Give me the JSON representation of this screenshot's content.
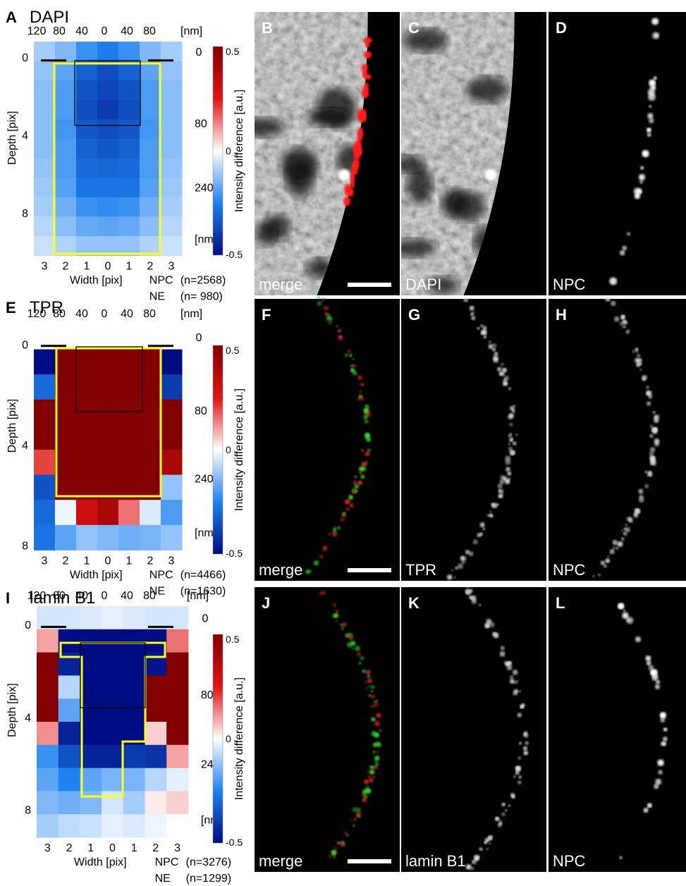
{
  "colorbar": {
    "title": "Intensity difference [a.u.]",
    "max_label": "0.5",
    "zero_label": "0",
    "min_label": "-0.5",
    "max": 0.5,
    "min": -0.5
  },
  "heatmaps": [
    {
      "label": "A",
      "title": "DAPI",
      "top_ticks": [
        "120",
        "80",
        "40",
        "0",
        "40",
        "80"
      ],
      "top_unit": "[nm]",
      "right_ticks": [
        "0",
        "80",
        "240",
        "[nm]"
      ],
      "y_ticks": [
        "0",
        "4",
        "8"
      ],
      "y_label": "Depth [pix]",
      "x_ticks": [
        "3",
        "2",
        "1",
        "0",
        "1",
        "2",
        "3"
      ],
      "x_label": "Width [pix]",
      "npc_label": "NPC",
      "npc_count": "(n=2568)",
      "ne_label": "NE",
      "ne_count": "(n=  980)",
      "values": [
        [
          -0.1,
          -0.14,
          -0.22,
          -0.26,
          -0.22,
          -0.14,
          -0.1
        ],
        [
          -0.12,
          -0.18,
          -0.32,
          -0.36,
          -0.32,
          -0.18,
          -0.12
        ],
        [
          -0.13,
          -0.2,
          -0.35,
          -0.38,
          -0.35,
          -0.2,
          -0.13
        ],
        [
          -0.13,
          -0.2,
          -0.36,
          -0.4,
          -0.36,
          -0.2,
          -0.13
        ],
        [
          -0.13,
          -0.21,
          -0.34,
          -0.36,
          -0.34,
          -0.21,
          -0.13
        ],
        [
          -0.13,
          -0.2,
          -0.32,
          -0.34,
          -0.32,
          -0.2,
          -0.13
        ],
        [
          -0.12,
          -0.2,
          -0.3,
          -0.31,
          -0.3,
          -0.2,
          -0.12
        ],
        [
          -0.11,
          -0.19,
          -0.28,
          -0.28,
          -0.28,
          -0.19,
          -0.11
        ],
        [
          -0.1,
          -0.16,
          -0.22,
          -0.23,
          -0.22,
          -0.16,
          -0.1
        ],
        [
          -0.08,
          -0.13,
          -0.17,
          -0.18,
          -0.17,
          -0.13,
          -0.08
        ],
        [
          -0.06,
          -0.09,
          -0.12,
          -0.12,
          -0.12,
          -0.09,
          -0.06
        ]
      ]
    },
    {
      "label": "E",
      "title": "TPR",
      "top_ticks": [
        "120",
        "80",
        "40",
        "0",
        "40",
        "80"
      ],
      "top_unit": "[nm]",
      "right_ticks": [
        "0",
        "80",
        "240",
        "[nm]"
      ],
      "y_ticks": [
        "0",
        "4",
        "8"
      ],
      "y_label": "Depth [pix]",
      "x_ticks": [
        "3",
        "2",
        "1",
        "0",
        "1",
        "2",
        "3"
      ],
      "x_label": "Width [pix]",
      "npc_label": "NPC",
      "npc_count": "(n=4466)",
      "ne_label": "NE",
      "ne_count": "(n=1630)",
      "values": [
        [
          0.0,
          0.0,
          0.0,
          0.0,
          0.0,
          0.0,
          0.0
        ],
        [
          -0.5,
          0.5,
          0.5,
          0.5,
          0.5,
          0.5,
          -0.5
        ],
        [
          -0.3,
          0.5,
          0.5,
          0.5,
          0.5,
          0.5,
          -0.4
        ],
        [
          0.5,
          0.5,
          0.5,
          0.5,
          0.5,
          0.5,
          0.5
        ],
        [
          0.5,
          0.5,
          0.5,
          0.5,
          0.5,
          0.5,
          0.5
        ],
        [
          0.2,
          0.5,
          0.5,
          0.5,
          0.5,
          0.5,
          0.4
        ],
        [
          -0.35,
          0.5,
          0.5,
          0.5,
          0.5,
          0.5,
          -0.12
        ],
        [
          -0.3,
          -0.02,
          0.3,
          0.4,
          0.15,
          -0.04,
          -0.2
        ],
        [
          -0.28,
          -0.18,
          -0.12,
          -0.14,
          -0.16,
          -0.15,
          -0.12
        ]
      ]
    },
    {
      "label": "I",
      "title": "lamin B1",
      "top_ticks": [
        "120",
        "80",
        "40",
        "0",
        "40",
        "80"
      ],
      "top_unit": "[nm]",
      "right_ticks": [
        "0",
        "80",
        "240",
        "[nm]"
      ],
      "y_ticks": [
        "0",
        "4",
        "8"
      ],
      "y_label": "Depth [pix]",
      "x_ticks": [
        "3",
        "2",
        "1",
        "0",
        "1",
        "2",
        "3"
      ],
      "x_label": "Width [pix]",
      "npc_label": "NPC",
      "npc_count": "(n=3276)",
      "ne_label": "NE",
      "ne_count": "(n=1299)",
      "values": [
        [
          -0.05,
          -0.05,
          -0.04,
          -0.03,
          -0.04,
          -0.05,
          -0.05
        ],
        [
          0.1,
          -0.5,
          -0.5,
          -0.5,
          -0.5,
          -0.5,
          0.15
        ],
        [
          0.5,
          -0.45,
          -0.5,
          -0.5,
          -0.5,
          -0.48,
          0.5
        ],
        [
          0.5,
          -0.08,
          -0.5,
          -0.5,
          -0.5,
          0.5,
          0.5
        ],
        [
          0.5,
          -0.18,
          -0.5,
          -0.5,
          -0.5,
          0.5,
          0.5
        ],
        [
          0.12,
          -0.45,
          -0.5,
          -0.5,
          -0.5,
          0.05,
          0.5
        ],
        [
          -0.22,
          -0.35,
          -0.45,
          -0.45,
          -0.4,
          -0.42,
          0.1
        ],
        [
          -0.18,
          -0.25,
          -0.18,
          -0.15,
          -0.15,
          -0.08,
          -0.03
        ],
        [
          -0.14,
          -0.16,
          -0.14,
          -0.05,
          -0.1,
          0.02,
          0.05
        ],
        [
          -0.1,
          -0.07,
          -0.06,
          -0.03,
          -0.04,
          -0.02,
          0.0
        ]
      ]
    }
  ],
  "image_panels": [
    {
      "label": "B",
      "title": "merge",
      "type": "merge-red",
      "scalebar": true
    },
    {
      "label": "C",
      "title": "DAPI",
      "type": "dapi",
      "scalebar": false
    },
    {
      "label": "D",
      "title": "NPC",
      "type": "npc-dots",
      "scalebar": false
    },
    {
      "label": "F",
      "title": "merge",
      "type": "merge-rg",
      "scalebar": true
    },
    {
      "label": "G",
      "title": "TPR",
      "type": "gray-line",
      "scalebar": false
    },
    {
      "label": "H",
      "title": "NPC",
      "type": "gray-line",
      "scalebar": false
    },
    {
      "label": "J",
      "title": "merge",
      "type": "merge-rg",
      "scalebar": true
    },
    {
      "label": "K",
      "title": "lamin B1",
      "type": "gray-line",
      "scalebar": false
    },
    {
      "label": "L",
      "title": "NPC",
      "type": "npc-dots",
      "scalebar": false
    }
  ]
}
